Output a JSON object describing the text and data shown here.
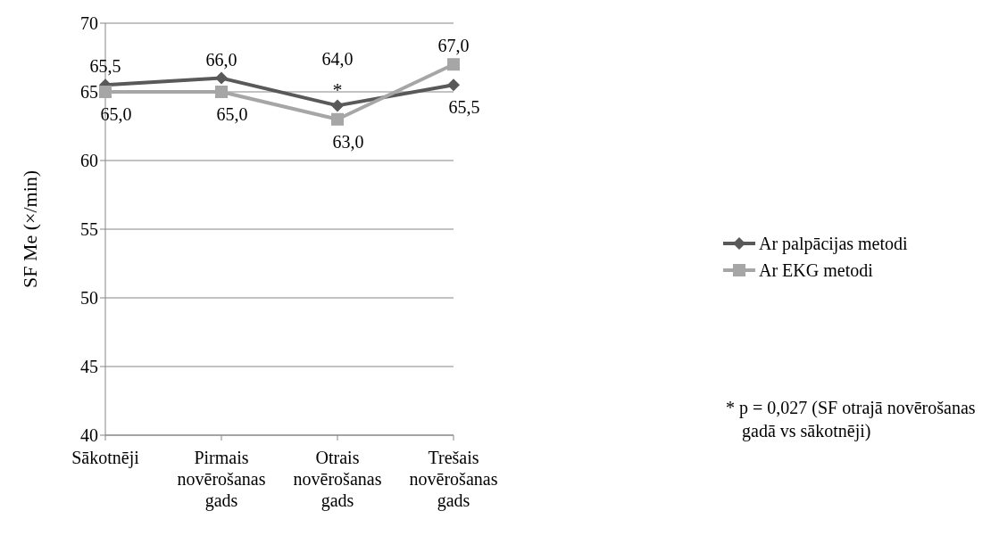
{
  "chart_data": {
    "type": "line",
    "ylabel": "SF Me  (×/min)",
    "categories": [
      "Sākotnēji",
      "Pirmais novērošanas gads",
      "Otrais novērošanas gads",
      "Trešais novērošanas gads"
    ],
    "series": [
      {
        "name": "Ar palpācijas metodi",
        "color": "#595959",
        "marker": "diamond",
        "values": [
          65.5,
          66.0,
          64.0,
          65.5
        ],
        "value_labels": [
          "65,5",
          "66,0",
          "64,0",
          "65,5"
        ]
      },
      {
        "name": "Ar EKG metodi",
        "color": "#a6a6a6",
        "marker": "square",
        "values": [
          65.0,
          65.0,
          63.0,
          67.0
        ],
        "value_labels": [
          "65,0",
          "65,0",
          "63,0",
          "67,0"
        ]
      }
    ],
    "ylim": [
      40,
      70
    ],
    "yticks": [
      40,
      45,
      50,
      55,
      60,
      65,
      70
    ],
    "grid": "y",
    "legend": "right",
    "annotations": [
      {
        "text": "*",
        "x": "Otrais novērošanas gads",
        "y": 64
      },
      "* p = 0,027  (SF otrajā novērošanas gadā vs sākotnēji)"
    ]
  }
}
